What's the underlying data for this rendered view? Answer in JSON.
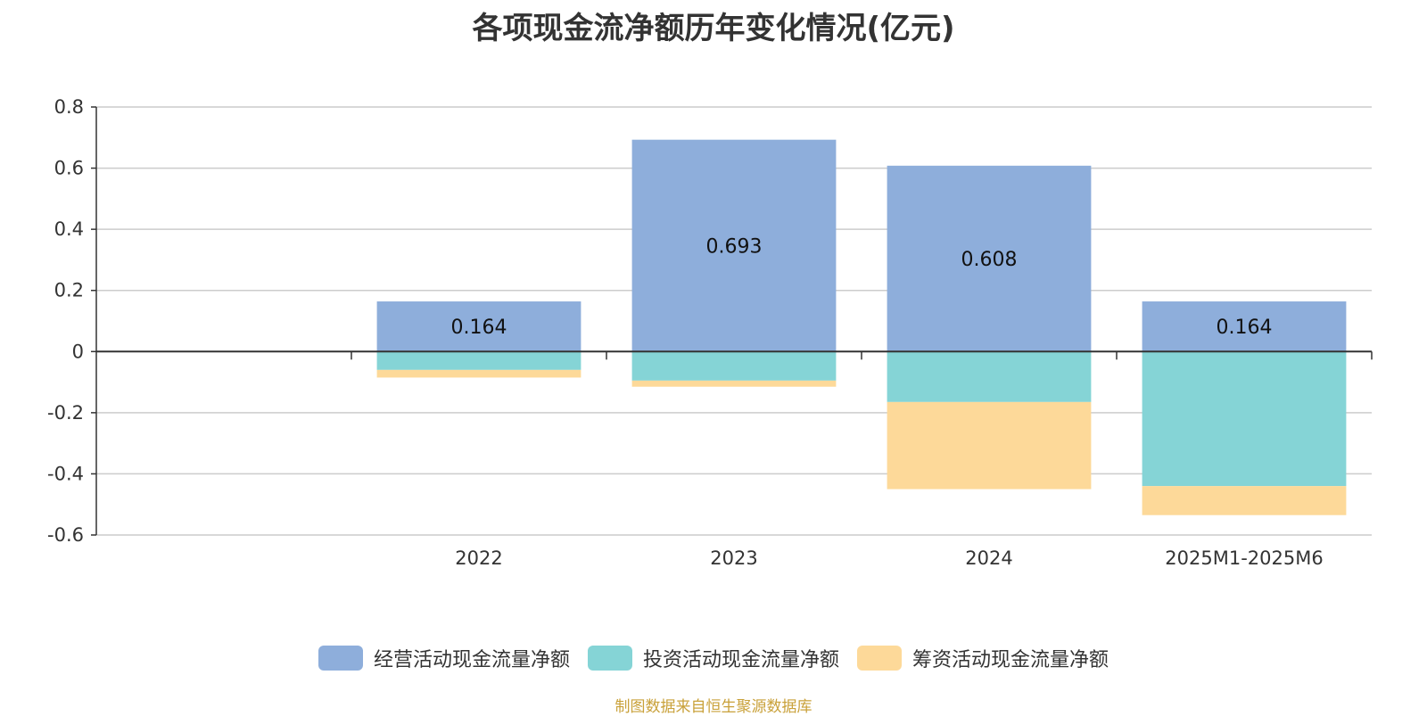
{
  "chart_data": {
    "type": "bar",
    "stacked": true,
    "title": "各项现金流净额历年变化情况(亿元)",
    "categories": [
      "",
      "2022",
      "2023",
      "2024",
      "2025M1-2025M6"
    ],
    "series": [
      {
        "name": "经营活动现金流量净额",
        "color": "#8eaedb",
        "values": [
          null,
          0.164,
          0.693,
          0.608,
          0.164
        ]
      },
      {
        "name": "投资活动现金流量净额",
        "color": "#85d4d6",
        "values": [
          null,
          -0.06,
          -0.095,
          -0.165,
          -0.44
        ]
      },
      {
        "name": "筹资活动现金流量净额",
        "color": "#fdd999",
        "values": [
          null,
          -0.025,
          -0.02,
          -0.285,
          -0.095
        ]
      }
    ],
    "data_labels": [
      null,
      "0.164",
      "0.693",
      "0.608",
      "0.164"
    ],
    "yticks": [
      0.8,
      0.6,
      0.4,
      0.2,
      0,
      -0.2,
      -0.4,
      -0.6
    ],
    "ytick_labels": [
      "0.8",
      "0.6",
      "0.4",
      "0.2",
      "0",
      "-0.2",
      "-0.4",
      "-0.6"
    ],
    "ylim": [
      -0.6,
      0.8
    ],
    "xlabel": "",
    "ylabel": "",
    "legend_position": "bottom",
    "grid": true
  },
  "legend_items": [
    "经营活动现金流量净额",
    "投资活动现金流量净额",
    "筹资活动现金流量净额"
  ],
  "source_note": "制图数据来自恒生聚源数据库"
}
